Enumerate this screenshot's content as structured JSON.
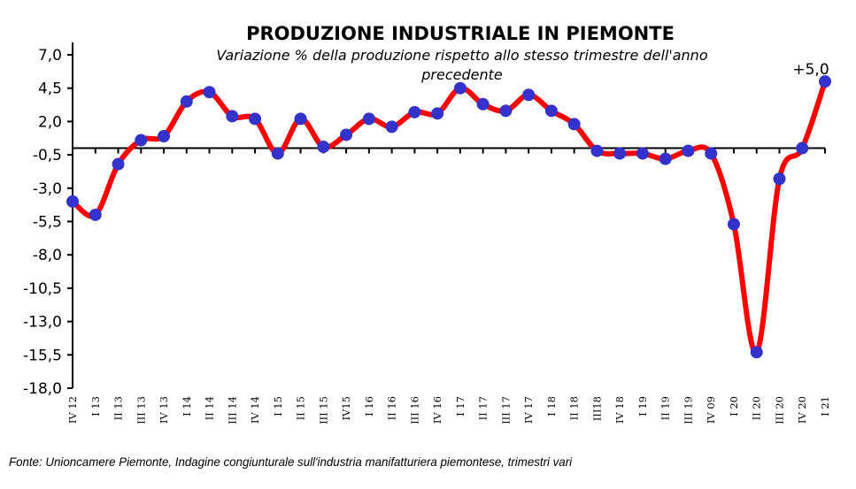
{
  "chart_data": {
    "type": "line",
    "title": "PRODUZIONE INDUSTRIALE IN PIEMONTE",
    "subtitle_line1": "Variazione % della produzione rispetto allo stesso trimestre dell'anno",
    "subtitle_line2": "precedente",
    "xlabel": "",
    "ylabel": "",
    "ylim": [
      -18.0,
      7.0
    ],
    "y_ticks": [
      "7,0",
      "4,5",
      "2,0",
      "-0,5",
      "-3,0",
      "-5,5",
      "-8,0",
      "-10,5",
      "-13,0",
      "-15,5",
      "-18,0"
    ],
    "y_tick_values": [
      7.0,
      4.5,
      2.0,
      -0.5,
      -3.0,
      -5.5,
      -8.0,
      -10.5,
      -13.0,
      -15.5,
      -18.0
    ],
    "grid": false,
    "categories": [
      "IV 12",
      "I 13",
      "II 13",
      "III 13",
      "IV 13",
      "I 14",
      "II 14",
      "III 14",
      "IV 14",
      "I 15",
      "II 15",
      "III 15",
      "IV15",
      "I 16",
      "II 16",
      "III 16",
      "IV 16",
      "I 17",
      "II 17",
      "III 17",
      "IV 17",
      "I 18",
      "II 18",
      "III18",
      "IV 18",
      "I 19",
      "II 19",
      "III 19",
      "IV 09",
      "I 20",
      "II 20",
      "III 20",
      "IV 20",
      "I 21"
    ],
    "series": [
      {
        "name": "Variazione %",
        "line_color": "#ff0000",
        "marker_color": "#3333cc",
        "values": [
          -4.0,
          -5.0,
          -1.2,
          0.6,
          0.9,
          3.5,
          4.2,
          2.4,
          2.2,
          -0.4,
          2.2,
          0.1,
          1.0,
          2.2,
          1.6,
          2.7,
          2.6,
          4.5,
          3.3,
          2.8,
          4.0,
          2.8,
          1.8,
          -0.2,
          -0.4,
          -0.4,
          -0.8,
          -0.2,
          -0.4,
          -5.7,
          -15.3,
          -2.3,
          0.0,
          5.0
        ]
      }
    ],
    "annotations": [
      {
        "text": "+5,0",
        "category": "I 21"
      }
    ]
  },
  "footer": {
    "source": "Fonte: Unioncamere Piemonte, Indagine congiunturale sull'industria manifatturiera piemontese, trimestri vari"
  }
}
